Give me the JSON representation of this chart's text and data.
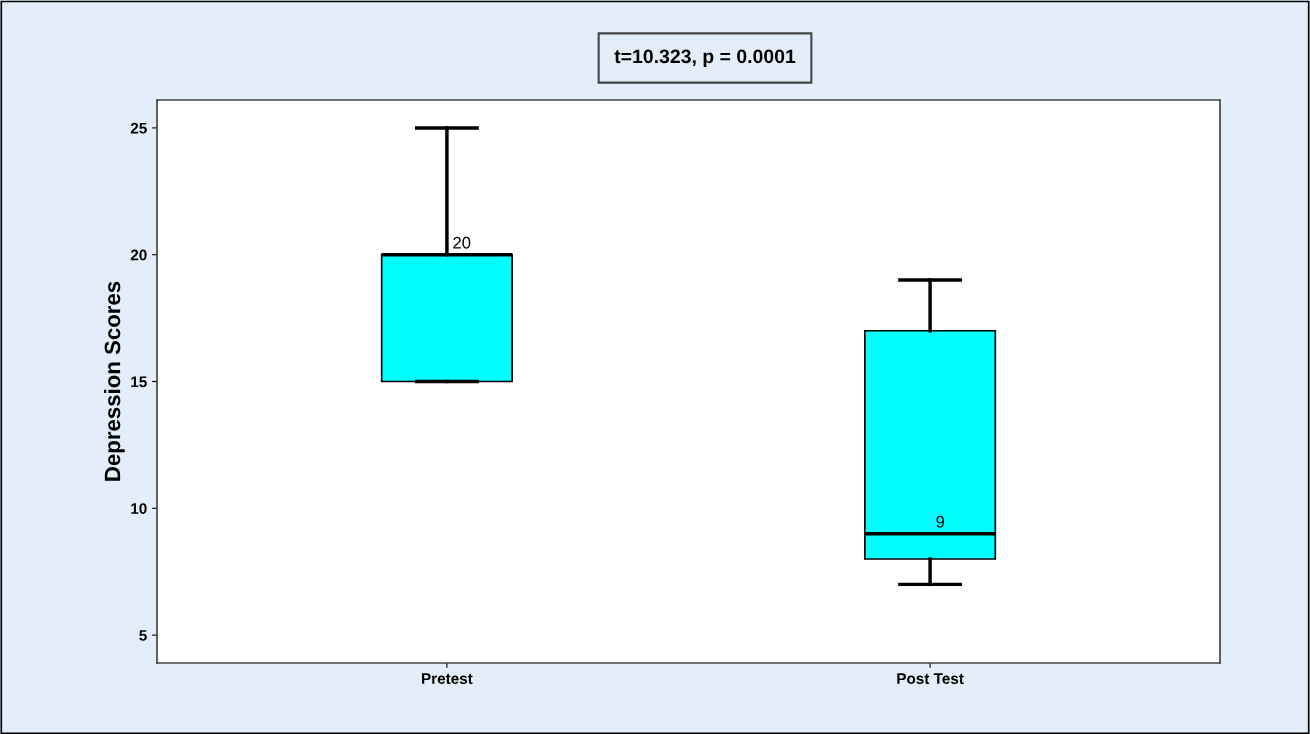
{
  "chart_data": {
    "type": "box",
    "title": "t=10.323, p = 0.0001",
    "ylabel": "Depression Scores",
    "categories": [
      "Pretest",
      "Post Test"
    ],
    "boxes": [
      {
        "low": 15,
        "q1": 15,
        "median": 20,
        "q3": 20,
        "high": 25
      },
      {
        "low": 7,
        "q1": 8,
        "median": 9,
        "q3": 17,
        "high": 19
      }
    ],
    "color": "#00ffff",
    "annotations": [
      {
        "text": "20",
        "x": "Pretest",
        "y": 20
      },
      {
        "text": "9",
        "x": "Post Test",
        "y": 9
      }
    ],
    "ylim": [
      3.9,
      26.1
    ],
    "yticks": [
      5,
      10,
      15,
      20,
      25
    ],
    "grid": false
  }
}
